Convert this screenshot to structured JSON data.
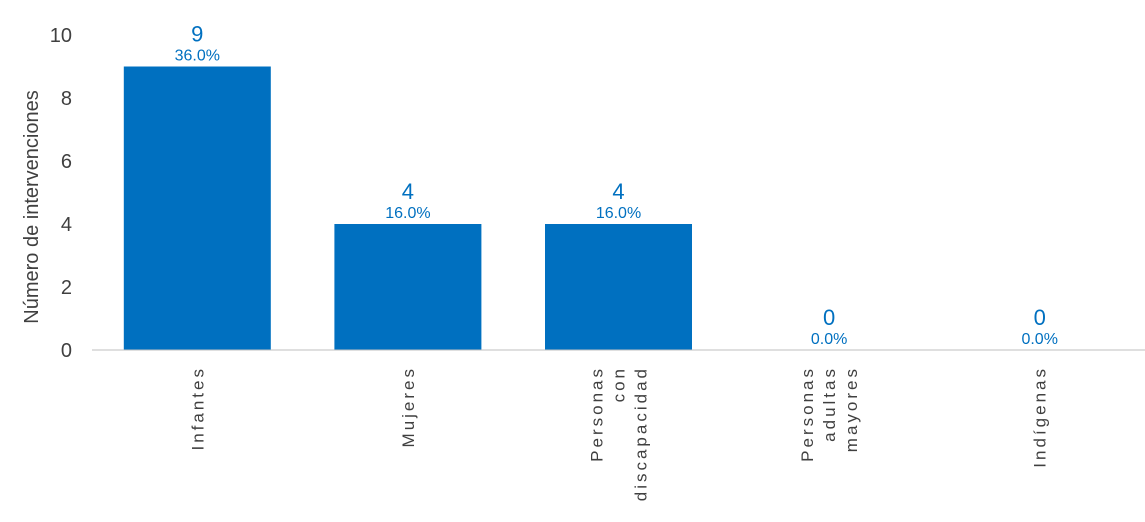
{
  "chart_data": {
    "type": "bar",
    "title": "",
    "xlabel": "",
    "ylabel": "Número de intervenciones",
    "ylim": [
      0,
      10
    ],
    "yticks": [
      0,
      2,
      4,
      6,
      8,
      10
    ],
    "categories": [
      [
        "Infantes"
      ],
      [
        "Mujeres"
      ],
      [
        "Personas",
        "con",
        "discapacidad"
      ],
      [
        "Personas",
        "adultas",
        "mayores"
      ],
      [
        "Indígenas"
      ]
    ],
    "values": [
      9,
      4,
      4,
      0,
      0
    ],
    "percent_labels": [
      "36.0%",
      "16.0%",
      "16.0%",
      "0.0%",
      "0.0%"
    ],
    "bar_color": "#0070C0",
    "label_color": "#0070C0",
    "grid": false
  }
}
